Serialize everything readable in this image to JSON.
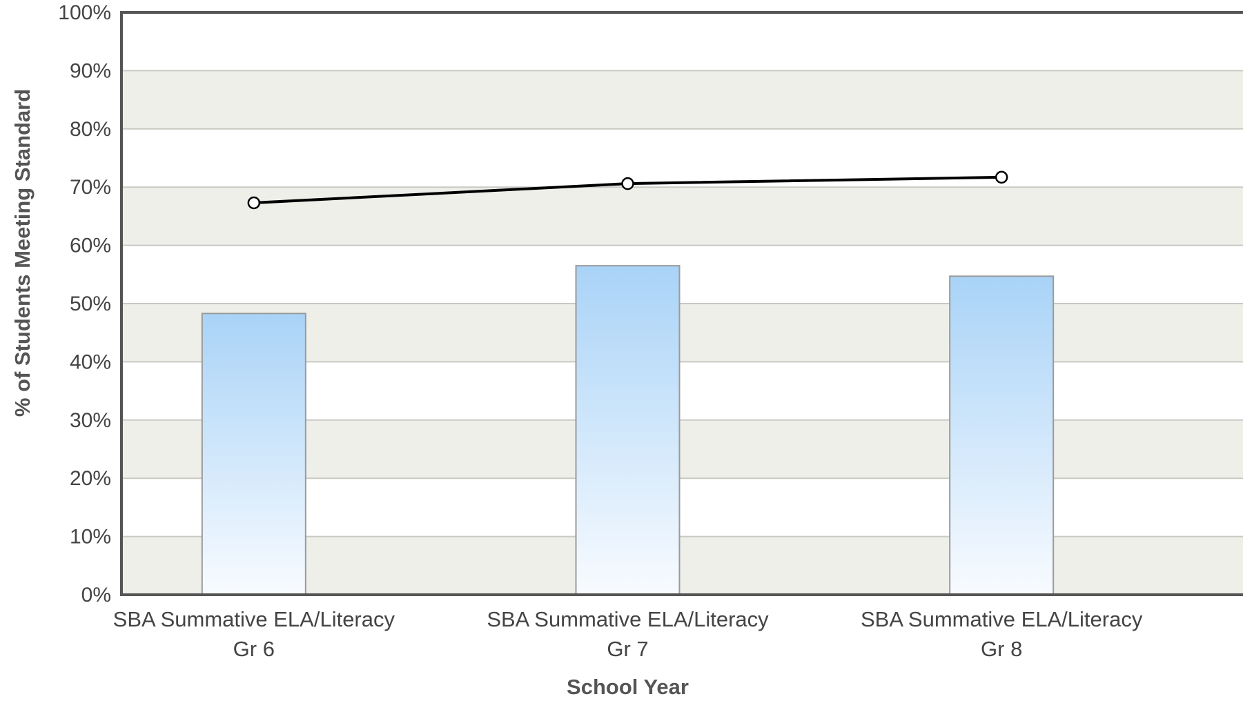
{
  "chart_data": {
    "type": "bar",
    "categories": [
      [
        "SBA Summative ELA/Literacy",
        "Gr 6"
      ],
      [
        "SBA Summative ELA/Literacy",
        "Gr 7"
      ],
      [
        "SBA Summative ELA/Literacy",
        "Gr 8"
      ]
    ],
    "series": [
      {
        "type": "bar",
        "values": [
          48.3,
          56.5,
          54.7
        ],
        "color": "#a9d3f7"
      },
      {
        "type": "line",
        "values": [
          67.3,
          70.6,
          71.7
        ],
        "color": "#000000"
      }
    ],
    "xlabel": "School Year",
    "ylabel": "% of Students Meeting Standard",
    "ylim": [
      0,
      100
    ],
    "yticks": [
      "0%",
      "10%",
      "20%",
      "30%",
      "40%",
      "50%",
      "60%",
      "70%",
      "80%",
      "90%",
      "100%"
    ],
    "grid": true,
    "band_color": "#efefea",
    "legend": "none"
  }
}
